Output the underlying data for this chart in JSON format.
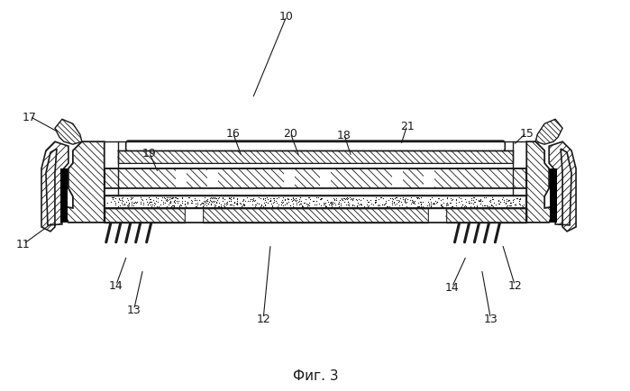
{
  "title": "Фиг. 3",
  "bg_color": "#ffffff",
  "line_color": "#1a1a1a",
  "figure_width": 6.99,
  "figure_height": 4.35
}
